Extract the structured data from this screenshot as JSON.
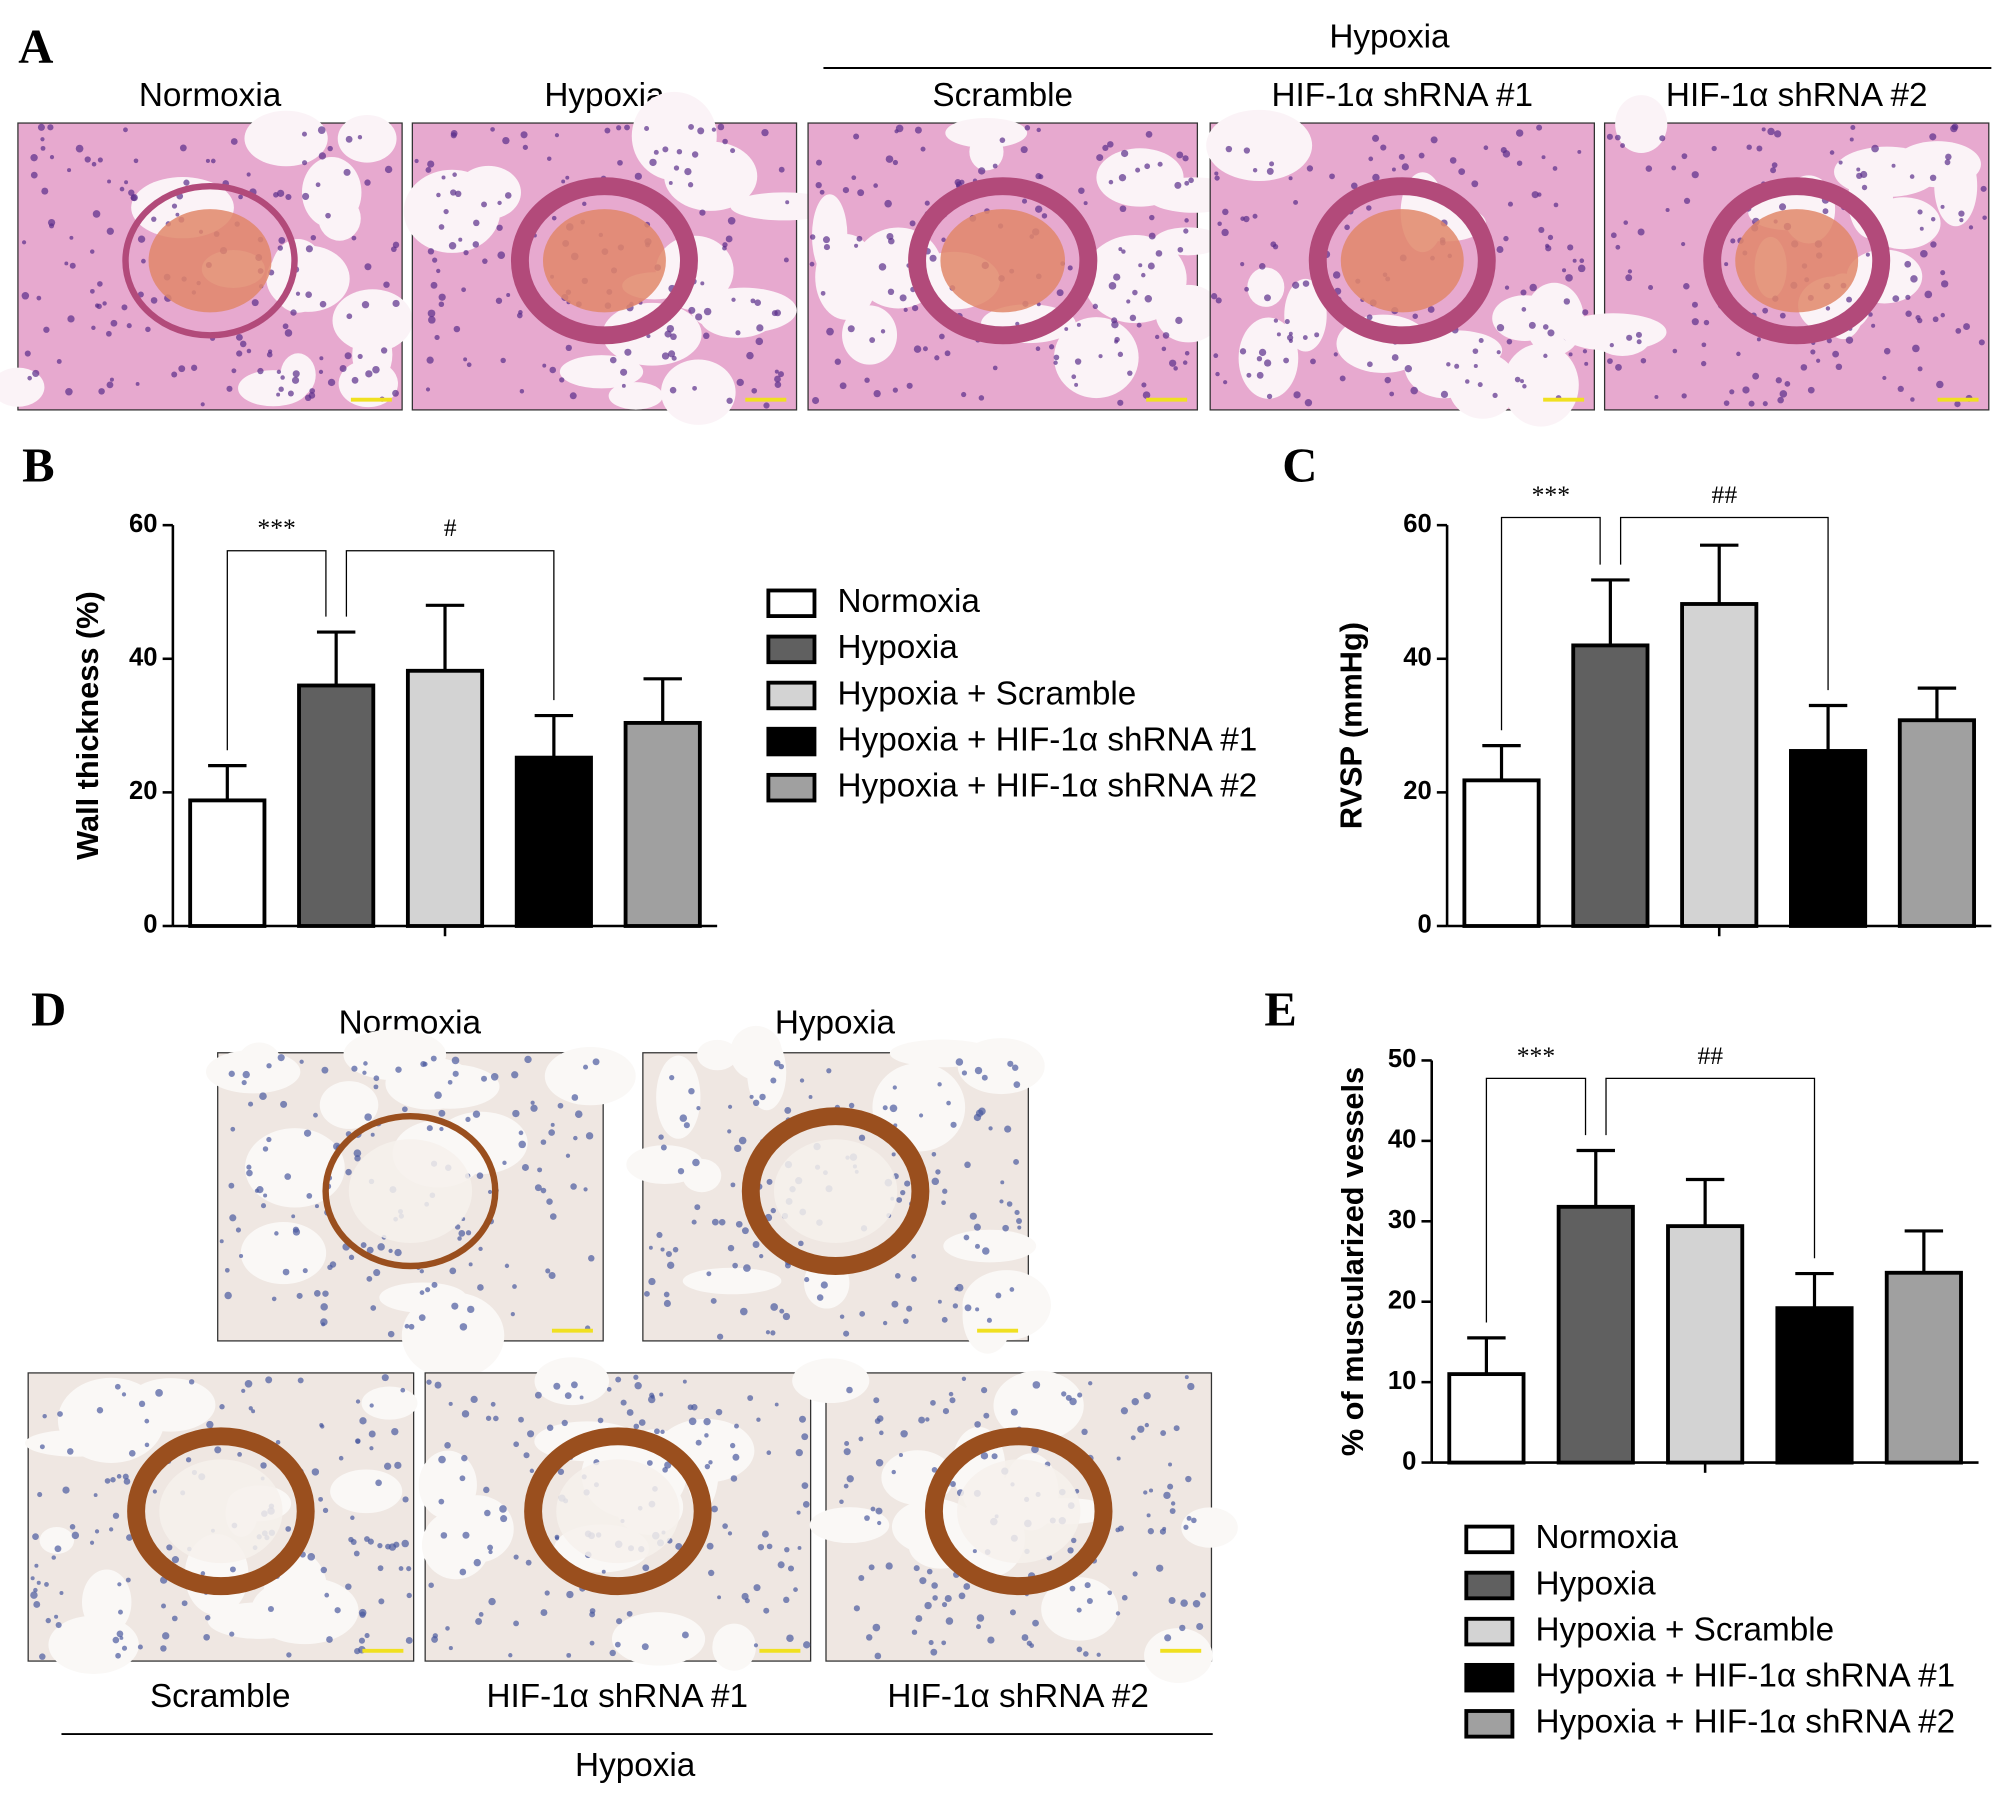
{
  "panel_a": {
    "panel": "A",
    "group_label": "Hypoxia",
    "images": [
      "Normoxia",
      "Hypoxia",
      "Scramble",
      "HIF-1α shRNA #1",
      "HIF-1α shRNA #2"
    ]
  },
  "panel_d": {
    "panel": "D",
    "group_label": "Hypoxia",
    "images": [
      "Normoxia",
      "Hypoxia",
      "Scramble",
      "HIF-1α shRNA #1",
      "HIF-1α shRNA #2"
    ]
  },
  "chart_data": [
    {
      "panel": "B",
      "type": "bar",
      "y_label": "Wall thickness (%)",
      "ylim": [
        0,
        60
      ],
      "yticks": [
        0,
        20,
        40,
        60
      ],
      "annotations": [
        "***",
        "#"
      ],
      "series": [
        {
          "name": "Normoxia",
          "color": "#ffffff",
          "values": [
            18.8
          ],
          "errors": [
            5.2
          ]
        },
        {
          "name": "Hypoxia",
          "color": "#606060",
          "values": [
            36
          ],
          "errors": [
            8
          ]
        },
        {
          "name": "Hypoxia + Scramble",
          "color": "#d3d3d3",
          "values": [
            38.2
          ],
          "errors": [
            9.8
          ]
        },
        {
          "name": "Hypoxia + HIF-1α  shRNA #1",
          "color": "#000000",
          "values": [
            25.2
          ],
          "errors": [
            6.3
          ]
        },
        {
          "name": "Hypoxia + HIF-1α  shRNA #2",
          "color": "#a0a0a0",
          "values": [
            30.4
          ],
          "errors": [
            6.6
          ]
        }
      ]
    },
    {
      "panel": "C",
      "type": "bar",
      "y_label": "RVSP (mmHg)",
      "ylim": [
        0,
        60
      ],
      "yticks": [
        0,
        20,
        40,
        60
      ],
      "annotations": [
        "***",
        "##"
      ],
      "series": [
        {
          "color": "#ffffff",
          "values": [
            21.8
          ],
          "errors": [
            5.2
          ]
        },
        {
          "color": "#606060",
          "values": [
            42
          ],
          "errors": [
            9.8
          ]
        },
        {
          "color": "#d3d3d3",
          "values": [
            48.2
          ],
          "errors": [
            8.8
          ]
        },
        {
          "color": "#000000",
          "values": [
            26.2
          ],
          "errors": [
            6.8
          ]
        },
        {
          "color": "#a0a0a0",
          "values": [
            30.8
          ],
          "errors": [
            4.8
          ]
        }
      ]
    },
    {
      "panel": "E",
      "type": "bar",
      "y_label": "% of muscularized vessels",
      "ylim": [
        0,
        50
      ],
      "yticks": [
        0,
        10,
        20,
        30,
        40,
        50
      ],
      "annotations": [
        "***",
        "##"
      ],
      "series": [
        {
          "name": "Normoxia",
          "color": "#ffffff",
          "values": [
            11
          ],
          "errors": [
            4.5
          ]
        },
        {
          "name": "Hypoxia",
          "color": "#606060",
          "values": [
            31.8
          ],
          "errors": [
            7
          ]
        },
        {
          "name": "Hypoxia + Scramble",
          "color": "#d3d3d3",
          "values": [
            29.4
          ],
          "errors": [
            5.8
          ]
        },
        {
          "name": "Hypoxia + HIF-1α  shRNA #1",
          "color": "#000000",
          "values": [
            19.2
          ],
          "errors": [
            4.3
          ]
        },
        {
          "name": "Hypoxia + HIF-1α  shRNA #2",
          "color": "#a0a0a0",
          "values": [
            23.6
          ],
          "errors": [
            5.2
          ]
        }
      ]
    }
  ]
}
